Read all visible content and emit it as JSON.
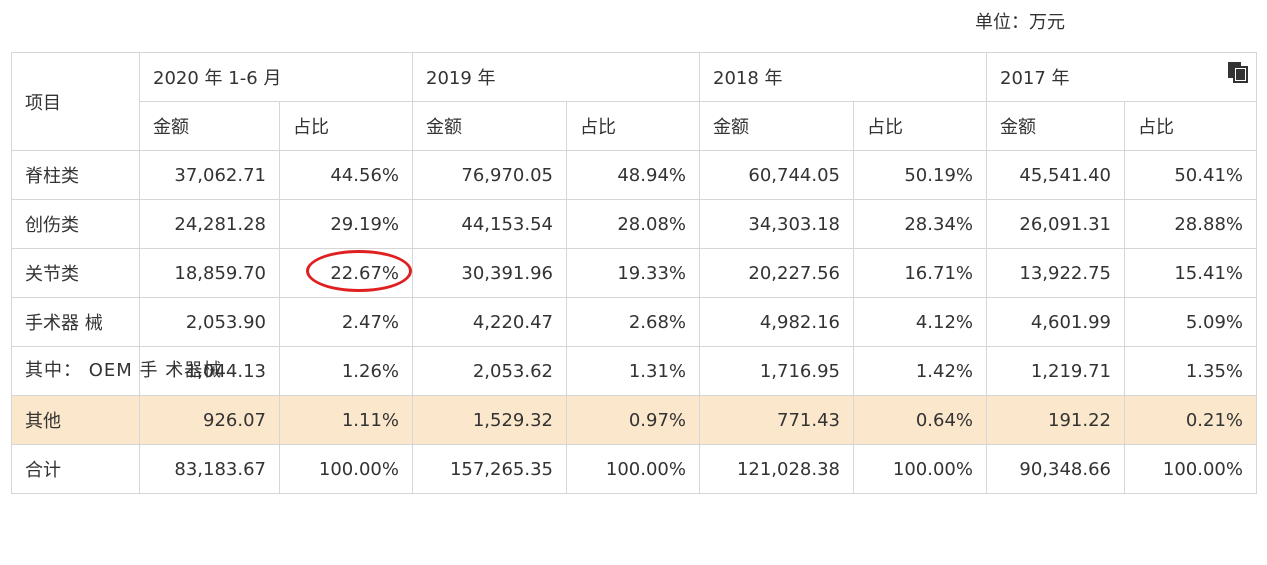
{
  "unit_note": "单位：万元",
  "icons": {
    "copy": "copy-icon"
  },
  "header": {
    "item": "项目",
    "periods": [
      "2020 年 1-6 月",
      "2019 年",
      "2018 年",
      "2017 年"
    ],
    "amount": "金额",
    "share": "占比"
  },
  "rows": [
    {
      "label": "脊柱类",
      "values": [
        "37,062.71",
        "44.56%",
        "76,970.05",
        "48.94%",
        "60,744.05",
        "50.19%",
        "45,541.40",
        "50.41%"
      ]
    },
    {
      "label": "创伤类",
      "values": [
        "24,281.28",
        "29.19%",
        "44,153.54",
        "28.08%",
        "34,303.18",
        "28.34%",
        "26,091.31",
        "28.88%"
      ]
    },
    {
      "label": "关节类",
      "values": [
        "18,859.70",
        "22.67%",
        "30,391.96",
        "19.33%",
        "20,227.56",
        "16.71%",
        "13,922.75",
        "15.41%"
      ]
    },
    {
      "label": "手术器 械",
      "values": [
        "2,053.90",
        "2.47%",
        "4,220.47",
        "2.68%",
        "4,982.16",
        "4.12%",
        "4,601.99",
        "5.09%"
      ]
    },
    {
      "label": "其中： OEM 手 术器械",
      "values": [
        "1,044.13",
        "1.26%",
        "2,053.62",
        "1.31%",
        "1,716.95",
        "1.42%",
        "1,219.71",
        "1.35%"
      ]
    },
    {
      "label": "其他",
      "values": [
        "926.07",
        "1.11%",
        "1,529.32",
        "0.97%",
        "771.43",
        "0.64%",
        "191.22",
        "0.21%"
      ]
    },
    {
      "label": "合计",
      "values": [
        "83,183.67",
        "100.00%",
        "157,265.35",
        "100.00%",
        "121,028.38",
        "100.00%",
        "90,348.66",
        "100.00%"
      ]
    }
  ],
  "colors": {
    "highlight_row": "#fbe7cb",
    "annotation_circle": "#e02020",
    "border": "#d6d6d6"
  }
}
